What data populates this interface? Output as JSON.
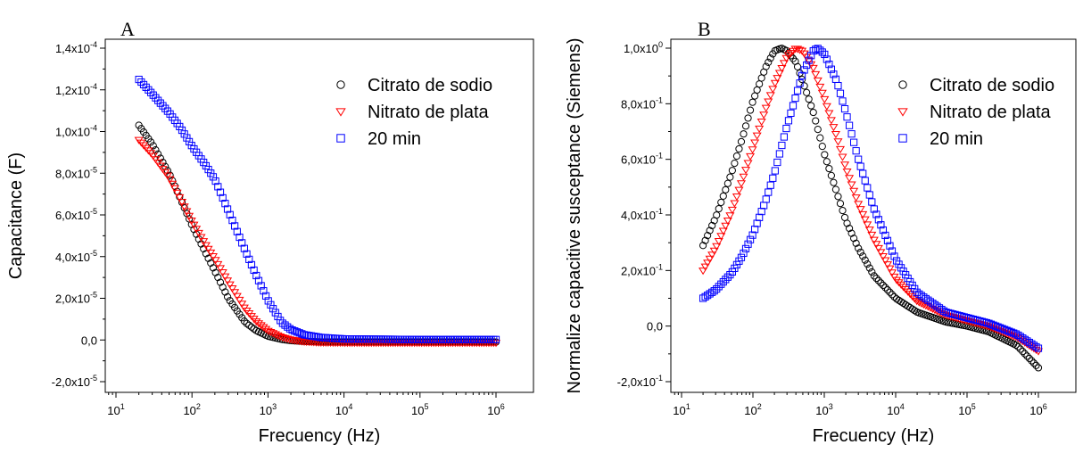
{
  "chart_data": [
    {
      "type": "scatter",
      "panel_label": "A",
      "xlabel": "Frecuency (Hz)",
      "ylabel": "Capacitance (F)",
      "x_scale": "log",
      "xlim": [
        10,
        1000000
      ],
      "ylim": [
        -2e-05,
        0.00014
      ],
      "x_ticks": [
        {
          "value": 10,
          "base": "10",
          "exp": "1"
        },
        {
          "value": 100,
          "base": "10",
          "exp": "2"
        },
        {
          "value": 1000,
          "base": "10",
          "exp": "3"
        },
        {
          "value": 10000,
          "base": "10",
          "exp": "4"
        },
        {
          "value": 100000,
          "base": "10",
          "exp": "5"
        },
        {
          "value": 1000000,
          "base": "10",
          "exp": "6"
        }
      ],
      "y_ticks": [
        {
          "value": -2e-05,
          "base": "-2,0x10",
          "exp": "-5"
        },
        {
          "value": 0,
          "base": "0,0",
          "exp": ""
        },
        {
          "value": 2e-05,
          "base": "2,0x10",
          "exp": "-5"
        },
        {
          "value": 4e-05,
          "base": "4,0x10",
          "exp": "-5"
        },
        {
          "value": 6e-05,
          "base": "6,0x10",
          "exp": "-5"
        },
        {
          "value": 8e-05,
          "base": "8,0x10",
          "exp": "-5"
        },
        {
          "value": 0.0001,
          "base": "1,0x10",
          "exp": "-4"
        },
        {
          "value": 0.00012,
          "base": "1,2x10",
          "exp": "-4"
        },
        {
          "value": 0.00014,
          "base": "1,4x10",
          "exp": "-4"
        }
      ],
      "grid": false,
      "legend_position": "top-right",
      "series": [
        {
          "name": "Citrato de sodio",
          "marker": "circle",
          "color": "#000000",
          "x": [
            20,
            30,
            50,
            70,
            100,
            150,
            200,
            300,
            500,
            700,
            1000,
            1500,
            2000,
            3000,
            5000,
            10000,
            100000,
            1000000
          ],
          "y": [
            0.000103,
            9.4e-05,
            8e-05,
            6.8e-05,
            5.5e-05,
            4.2e-05,
            3.3e-05,
            2e-05,
            8.5e-06,
            4.5e-06,
            1.8e-06,
            3e-07,
            -3e-07,
            -7e-07,
            -1e-06,
            -1e-06,
            -1e-06,
            -1e-06
          ]
        },
        {
          "name": "Nitrato de plata",
          "marker": "triangle-down",
          "color": "#ff0000",
          "x": [
            20,
            30,
            50,
            70,
            100,
            150,
            200,
            300,
            500,
            700,
            1000,
            1500,
            2000,
            3000,
            5000,
            10000,
            100000,
            1000000
          ],
          "y": [
            9.6e-05,
            8.9e-05,
            7.8e-05,
            6.8e-05,
            5.7e-05,
            4.6e-05,
            3.9e-05,
            2.8e-05,
            1.5e-05,
            9e-06,
            4.5e-06,
            1.5e-06,
            2e-07,
            -8e-07,
            -1.2e-06,
            -1.3e-06,
            -1.3e-06,
            -1.3e-06
          ]
        },
        {
          "name": "20 min",
          "marker": "square",
          "color": "#0000ff",
          "x": [
            20,
            30,
            50,
            70,
            100,
            150,
            200,
            300,
            500,
            700,
            1000,
            1500,
            2000,
            3000,
            5000,
            10000,
            100000,
            1000000
          ],
          "y": [
            0.000125,
            0.000118,
            0.000109,
            0.000102,
            9.3e-05,
            8.4e-05,
            7.7e-05,
            6.2e-05,
            4.3e-05,
            3.1e-05,
            1.9e-05,
            8.5e-06,
            5e-06,
            2.5e-06,
            1.2e-06,
            5e-07,
            2e-07,
            2e-07
          ]
        }
      ]
    },
    {
      "type": "scatter",
      "panel_label": "B",
      "xlabel": "Frecuency (Hz)",
      "ylabel": "Normalize capacitive susceptance (Siemens)",
      "x_scale": "log",
      "xlim": [
        10,
        1000000
      ],
      "ylim": [
        -0.2,
        1.0
      ],
      "x_ticks": [
        {
          "value": 10,
          "base": "10",
          "exp": "1"
        },
        {
          "value": 100,
          "base": "10",
          "exp": "2"
        },
        {
          "value": 1000,
          "base": "10",
          "exp": "3"
        },
        {
          "value": 10000,
          "base": "10",
          "exp": "4"
        },
        {
          "value": 100000,
          "base": "10",
          "exp": "5"
        },
        {
          "value": 1000000,
          "base": "10",
          "exp": "6"
        }
      ],
      "y_ticks": [
        {
          "value": -0.2,
          "base": "-2,0x10",
          "exp": "-1"
        },
        {
          "value": 0,
          "base": "0,0",
          "exp": ""
        },
        {
          "value": 0.2,
          "base": "2,0x10",
          "exp": "-1"
        },
        {
          "value": 0.4,
          "base": "4,0x10",
          "exp": "-1"
        },
        {
          "value": 0.6,
          "base": "6,0x10",
          "exp": "-1"
        },
        {
          "value": 0.8,
          "base": "8,0x10",
          "exp": "-1"
        },
        {
          "value": 1.0,
          "base": "1,0x10",
          "exp": "0"
        }
      ],
      "grid": false,
      "legend_position": "top-right",
      "series": [
        {
          "name": "Citrato de sodio",
          "marker": "circle",
          "color": "#000000",
          "x": [
            20,
            30,
            50,
            70,
            100,
            150,
            200,
            250,
            300,
            400,
            500,
            700,
            1000,
            1500,
            2000,
            3000,
            5000,
            10000,
            20000,
            50000,
            100000,
            200000,
            500000,
            1000000
          ],
          "y": [
            0.29,
            0.39,
            0.55,
            0.67,
            0.81,
            0.93,
            0.99,
            1.0,
            0.99,
            0.95,
            0.88,
            0.77,
            0.62,
            0.48,
            0.38,
            0.28,
            0.18,
            0.1,
            0.05,
            0.015,
            0.0,
            -0.02,
            -0.07,
            -0.15
          ]
        },
        {
          "name": "Nitrato de plata",
          "marker": "triangle-down",
          "color": "#ff0000",
          "x": [
            20,
            30,
            50,
            70,
            100,
            150,
            200,
            300,
            400,
            500,
            700,
            1000,
            1500,
            2000,
            3000,
            5000,
            10000,
            20000,
            50000,
            100000,
            200000,
            500000,
            1000000
          ],
          "y": [
            0.2,
            0.28,
            0.41,
            0.52,
            0.64,
            0.78,
            0.87,
            0.97,
            1.0,
            0.99,
            0.93,
            0.82,
            0.68,
            0.57,
            0.44,
            0.31,
            0.17,
            0.09,
            0.04,
            0.02,
            0.0,
            -0.04,
            -0.09
          ]
        },
        {
          "name": "20 min",
          "marker": "square",
          "color": "#0000ff",
          "x": [
            20,
            30,
            50,
            70,
            100,
            150,
            200,
            300,
            500,
            700,
            800,
            1000,
            1500,
            2000,
            3000,
            5000,
            10000,
            20000,
            50000,
            100000,
            200000,
            500000,
            1000000
          ],
          "y": [
            0.1,
            0.13,
            0.19,
            0.25,
            0.33,
            0.45,
            0.55,
            0.72,
            0.91,
            0.99,
            1.0,
            0.98,
            0.88,
            0.77,
            0.6,
            0.42,
            0.24,
            0.12,
            0.05,
            0.03,
            0.01,
            -0.03,
            -0.08
          ]
        }
      ]
    }
  ]
}
